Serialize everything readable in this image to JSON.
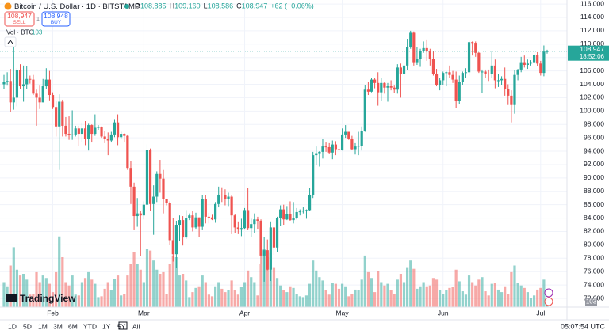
{
  "header": {
    "symbol": "Bitcoin / U.S. Dollar · 1D · BITSTAMP",
    "ohlc": [
      {
        "key": "O",
        "value": "108,885"
      },
      {
        "key": "H",
        "value": "109,160"
      },
      {
        "key": "L",
        "value": "108,586"
      },
      {
        "key": "C",
        "value": "108,947"
      }
    ],
    "change": "+62 (+0.06%)"
  },
  "trade": {
    "sell_price": "108,947",
    "sell": "SELL",
    "spread": "1",
    "buy_price": "108,948",
    "buy": "BUY"
  },
  "logo": "TradingView",
  "toolbar": {
    "ranges": [
      "1D",
      "5D",
      "1M",
      "3M",
      "6M",
      "YTD",
      "1Y",
      "5Y",
      "All"
    ],
    "clock": "05:07:54 UTC"
  },
  "price_tag": {
    "countdown": "18:52:06"
  },
  "chart_data": {
    "type": "candlestick",
    "up_color": "#26a69a",
    "down_color": "#ef5350",
    "grid": true,
    "volume_label": "Vol · BTC",
    "open": [
      104000,
      104400,
      104500,
      101300,
      102000,
      106100,
      103700,
      104000,
      104800,
      104700,
      102600,
      102000,
      101300,
      103700,
      104700,
      102400,
      100600,
      97700,
      101400,
      97800,
      96600,
      96500,
      96500,
      97400,
      96600,
      97400,
      95800,
      97900,
      96600,
      97500,
      97600,
      96200,
      95800,
      95600,
      96500,
      98300,
      96100,
      96600,
      96300,
      91500,
      88700,
      84300,
      84700,
      84400,
      86000,
      94200,
      86100,
      87200,
      90600,
      89900,
      86800,
      86200,
      80700,
      78600,
      83000,
      83700,
      81100,
      84000,
      84400,
      82600,
      84100,
      82700,
      86900,
      84200,
      84100,
      83800,
      86100,
      87500,
      87400,
      86900,
      87200,
      84400,
      82600,
      82400,
      82500,
      85200,
      82500,
      83100,
      83800,
      83600,
      78400,
      79200,
      76300,
      82600,
      79600,
      84000,
      85300,
      83800,
      84600,
      83700,
      84000,
      84900,
      85000,
      85100,
      85200,
      87500,
      93400,
      93700,
      93900,
      94700,
      94600,
      93800,
      95000,
      94300,
      94200,
      96500,
      96900,
      95900,
      94300,
      94700,
      94800,
      97000,
      103200,
      102900,
      104700,
      104200,
      102800,
      104200,
      103500,
      103700,
      103500,
      103200,
      106500,
      105600,
      106800,
      109600,
      111700,
      107300,
      107800,
      109000,
      109400,
      108900,
      107800,
      105600,
      103900,
      104600,
      105700,
      105800,
      105400,
      104700,
      101500,
      104300,
      105700,
      105800,
      110300,
      110200,
      108700,
      105900,
      105900,
      105600,
      105500,
      106800,
      104600,
      104600,
      104800,
      103300,
      102300,
      100900,
      105400,
      106200,
      107300,
      106900,
      107100,
      107300,
      108400,
      107100,
      105700,
      108885
    ],
    "high": [
      105400,
      105800,
      106300,
      110000,
      106400,
      107000,
      106800,
      106700,
      105300,
      105400,
      103200,
      103800,
      104800,
      106400,
      106000,
      102800,
      101500,
      102500,
      101700,
      99100,
      99200,
      100100,
      97800,
      97800,
      98300,
      98500,
      98100,
      98000,
      99500,
      97900,
      97700,
      97000,
      96800,
      96900,
      98800,
      99500,
      96900,
      96700,
      96500,
      92500,
      89300,
      87000,
      85100,
      86500,
      95000,
      94400,
      88900,
      91000,
      92700,
      91200,
      86900,
      86500,
      84000,
      83600,
      84400,
      84300,
      85200,
      84700,
      85100,
      84800,
      84100,
      87400,
      87400,
      84800,
      84500,
      86400,
      88700,
      88600,
      88300,
      87800,
      87500,
      84600,
      83500,
      83900,
      85500,
      88500,
      83900,
      84700,
      84200,
      83800,
      81200,
      80800,
      83500,
      82700,
      84200,
      85900,
      86000,
      85800,
      86500,
      86400,
      85500,
      85300,
      85600,
      85300,
      88500,
      93900,
      94700,
      94000,
      95800,
      95300,
      95200,
      95600,
      95500,
      95200,
      97400,
      97900,
      96900,
      96300,
      95200,
      96900,
      97700,
      103900,
      104300,
      104900,
      105000,
      105800,
      104900,
      104300,
      104200,
      104600,
      103800,
      107000,
      107100,
      107300,
      110800,
      112000,
      111900,
      109500,
      109300,
      110400,
      110700,
      109300,
      108900,
      106300,
      104900,
      105900,
      105900,
      106800,
      106000,
      105900,
      105300,
      105900,
      106400,
      110500,
      110400,
      110400,
      108800,
      106200,
      106200,
      106200,
      108900,
      107700,
      105500,
      105200,
      106500,
      104000,
      103100,
      106100,
      106300,
      108100,
      108300,
      107700,
      107600,
      108500,
      108800,
      107500,
      109800,
      109160
    ],
    "low": [
      103300,
      103800,
      99900,
      100200,
      100700,
      103300,
      101400,
      103300,
      104100,
      102400,
      97800,
      100300,
      101300,
      103300,
      101600,
      100300,
      96200,
      91200,
      96200,
      96200,
      95700,
      95700,
      96200,
      94800,
      95300,
      94900,
      94100,
      95300,
      96300,
      97200,
      96000,
      95200,
      93400,
      95300,
      96100,
      94900,
      95800,
      95300,
      91200,
      86100,
      82300,
      82700,
      78300,
      83800,
      85000,
      85100,
      81500,
      86400,
      87800,
      84700,
      85900,
      80000,
      77500,
      76600,
      80600,
      79900,
      80900,
      83700,
      82000,
      82400,
      81200,
      82300,
      83200,
      83200,
      83700,
      83300,
      85600,
      86400,
      85900,
      85800,
      81600,
      81700,
      81600,
      81300,
      82400,
      82300,
      81200,
      81700,
      82400,
      77200,
      74500,
      76200,
      74600,
      78500,
      78900,
      82800,
      83000,
      83700,
      83600,
      83200,
      83800,
      84400,
      84700,
      83900,
      85100,
      87000,
      91900,
      91700,
      92900,
      93900,
      93600,
      92800,
      93400,
      92900,
      94100,
      96000,
      95700,
      94200,
      93500,
      93400,
      94100,
      96900,
      102400,
      102800,
      103400,
      100800,
      101500,
      102600,
      101400,
      103100,
      102700,
      102600,
      102000,
      104200,
      106100,
      109300,
      106800,
      106900,
      106600,
      108700,
      107500,
      106800,
      105300,
      103700,
      103100,
      103900,
      103700,
      104900,
      104200,
      100400,
      101100,
      103900,
      105000,
      105300,
      108300,
      108100,
      105700,
      102700,
      104900,
      104500,
      104900,
      103400,
      103600,
      103900,
      102300,
      100900,
      98300,
      99600,
      104600,
      105800,
      106500,
      106300,
      106800,
      107200,
      106700,
      105300,
      105200,
      108586
    ],
    "close": [
      104400,
      104500,
      101300,
      102000,
      106100,
      103700,
      104000,
      104800,
      104700,
      102600,
      102000,
      101300,
      103700,
      104700,
      102400,
      100600,
      97700,
      101400,
      97800,
      96600,
      96500,
      96500,
      97400,
      96600,
      97400,
      95800,
      97900,
      96600,
      97500,
      97600,
      96200,
      95800,
      95600,
      96500,
      98300,
      96100,
      96600,
      96300,
      91500,
      88700,
      84300,
      84700,
      84400,
      86000,
      94200,
      86100,
      87200,
      90600,
      89900,
      86800,
      86200,
      80700,
      78600,
      83000,
      83700,
      81100,
      84000,
      84400,
      82600,
      84100,
      82700,
      86900,
      84200,
      84100,
      83800,
      86100,
      87500,
      87400,
      86900,
      87200,
      84400,
      82600,
      82400,
      82500,
      85200,
      82500,
      83100,
      83800,
      83600,
      78400,
      79200,
      76300,
      82600,
      79600,
      84000,
      85300,
      83800,
      84600,
      83700,
      84000,
      84900,
      85000,
      85100,
      85200,
      87500,
      93400,
      93700,
      93900,
      94700,
      94600,
      93800,
      95000,
      94300,
      94200,
      96500,
      96900,
      95900,
      94300,
      94700,
      94800,
      97000,
      103200,
      102900,
      104700,
      104200,
      102800,
      104200,
      103500,
      103700,
      103500,
      103200,
      106500,
      105600,
      106800,
      109600,
      111700,
      107300,
      107800,
      109000,
      109400,
      108900,
      107800,
      105600,
      103900,
      104600,
      105700,
      105800,
      105400,
      104700,
      101500,
      104300,
      105700,
      105800,
      110300,
      110200,
      108700,
      105900,
      105900,
      105600,
      105500,
      106800,
      104600,
      104600,
      104800,
      103300,
      102300,
      100900,
      105400,
      106200,
      107300,
      106900,
      107100,
      107300,
      108400,
      107100,
      105700,
      108885,
      108947
    ],
    "volume": [
      300,
      250,
      500,
      720,
      450,
      380,
      400,
      330,
      150,
      160,
      420,
      300,
      380,
      350,
      280,
      180,
      420,
      850,
      600,
      300,
      260,
      380,
      150,
      140,
      300,
      350,
      420,
      330,
      280,
      120,
      130,
      220,
      300,
      200,
      340,
      380,
      140,
      160,
      380,
      520,
      660,
      520,
      450,
      300,
      700,
      680,
      560,
      450,
      400,
      420,
      160,
      520,
      620,
      600,
      380,
      400,
      320,
      120,
      180,
      230,
      250,
      380,
      300,
      150,
      130,
      250,
      300,
      220,
      180,
      200,
      320,
      200,
      150,
      240,
      300,
      440,
      360,
      300,
      140,
      520,
      700,
      600,
      650,
      480,
      350,
      260,
      200,
      180,
      250,
      230,
      160,
      130,
      120,
      140,
      280,
      560,
      440,
      360,
      320,
      200,
      150,
      290,
      280,
      220,
      280,
      250,
      130,
      160,
      210,
      200,
      330,
      620,
      420,
      350,
      180,
      430,
      300,
      260,
      280,
      200,
      160,
      330,
      400,
      300,
      480,
      560,
      460,
      220,
      250,
      300,
      250,
      260,
      350,
      330,
      200,
      160,
      200,
      230,
      240,
      450,
      310,
      190,
      150,
      380,
      300,
      260,
      330,
      360,
      190,
      140,
      280,
      290,
      210,
      180,
      250,
      160,
      420,
      500,
      290,
      260,
      230,
      180,
      110,
      140,
      210,
      230,
      330,
      103
    ],
    "ylim": [
      70700,
      116600
    ],
    "yticks": [
      {
        "value": 72000,
        "label": "72,000"
      },
      {
        "value": 74000,
        "label": "74,000"
      },
      {
        "value": 76000,
        "label": "76,000"
      },
      {
        "value": 78000,
        "label": "78,000"
      },
      {
        "value": 80000,
        "label": "80,000"
      },
      {
        "value": 82000,
        "label": "82,000"
      },
      {
        "value": 84000,
        "label": "84,000"
      },
      {
        "value": 86000,
        "label": "86,000"
      },
      {
        "value": 88000,
        "label": "88,000"
      },
      {
        "value": 90000,
        "label": "90,000"
      },
      {
        "value": 92000,
        "label": "92,000"
      },
      {
        "value": 94000,
        "label": "94,000"
      },
      {
        "value": 96000,
        "label": "96,000"
      },
      {
        "value": 98000,
        "label": "98,000"
      },
      {
        "value": 100000,
        "label": "100,000"
      },
      {
        "value": 102000,
        "label": "102,000"
      },
      {
        "value": 104000,
        "label": "104,000"
      },
      {
        "value": 106000,
        "label": "106,000"
      },
      {
        "value": 108000,
        "label": "108,000"
      },
      {
        "value": 110000,
        "label": "110,000"
      },
      {
        "value": 112000,
        "label": "112,000"
      },
      {
        "value": 114000,
        "label": "114,000"
      },
      {
        "value": 116000,
        "label": "116,000"
      }
    ],
    "xticks": [
      {
        "value": 15,
        "label": "Feb"
      },
      {
        "value": 43,
        "label": "Mar"
      },
      {
        "value": 74,
        "label": "Apr"
      },
      {
        "value": 104,
        "label": "May"
      },
      {
        "value": 135,
        "label": "Jun"
      },
      {
        "value": 165,
        "label": "Jul"
      }
    ]
  }
}
